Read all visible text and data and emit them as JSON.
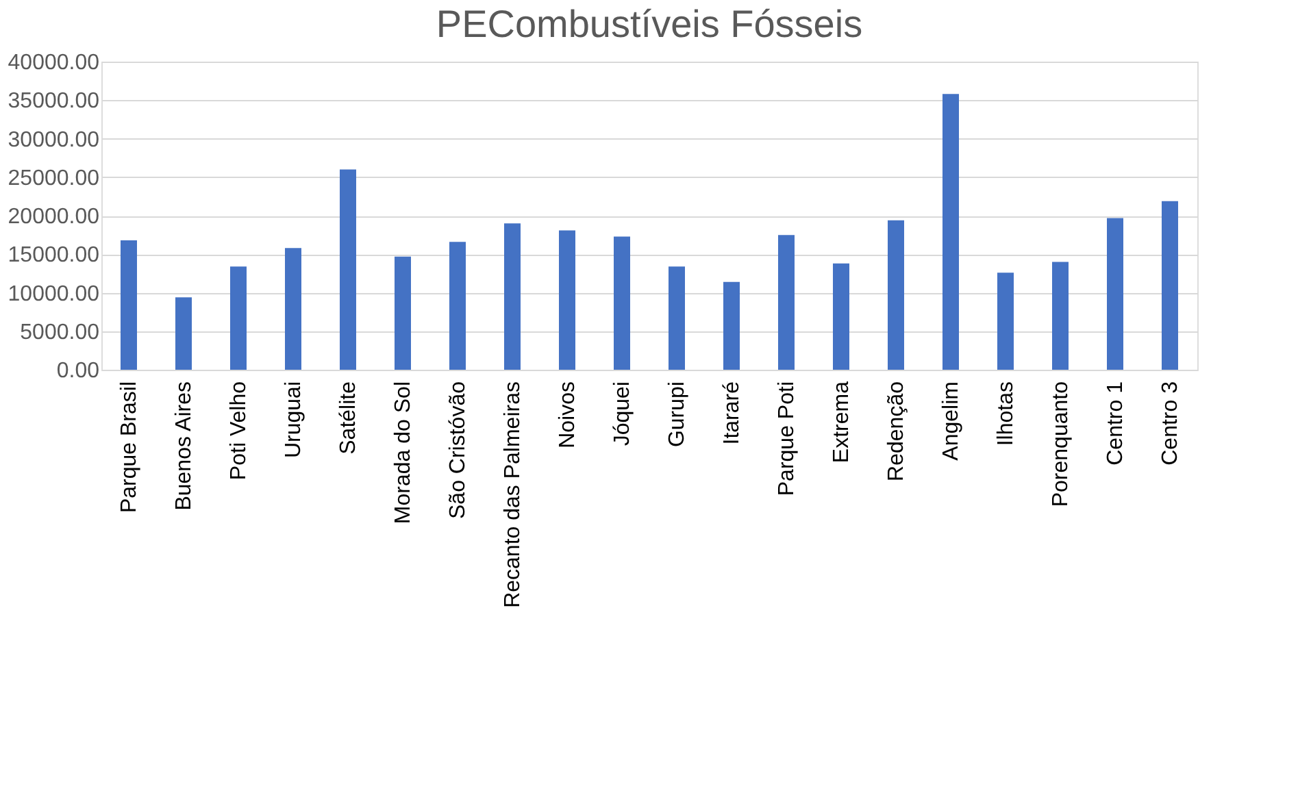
{
  "chart_data": {
    "type": "bar",
    "title": "PECombustíveis Fósseis",
    "categories": [
      "Parque Brasil",
      "Buenos Aires",
      "Poti Velho",
      "Uruguai",
      "Satélite",
      "Morada do Sol",
      "São Cristóvão",
      "Recanto das Palmeiras",
      "Noivos",
      "Jóquei",
      "Gurupi",
      "Itararé",
      "Parque Poti",
      "Extrema",
      "Redenção",
      "Angelim",
      "Ilhotas",
      "Porenquanto",
      "Centro 1",
      "Centro 3"
    ],
    "values": [
      16800,
      9400,
      13400,
      15800,
      26000,
      14700,
      16600,
      19000,
      18100,
      17300,
      13400,
      11400,
      17500,
      13800,
      19400,
      35800,
      12600,
      14000,
      19700,
      21900
    ],
    "color": "#4472c4",
    "ylim": [
      0,
      40000
    ],
    "yticks": [
      {
        "value": 0,
        "label": "0.00"
      },
      {
        "value": 5000,
        "label": "5000.00"
      },
      {
        "value": 10000,
        "label": "10000.00"
      },
      {
        "value": 15000,
        "label": "15000.00"
      },
      {
        "value": 20000,
        "label": "20000.00"
      },
      {
        "value": 25000,
        "label": "25000.00"
      },
      {
        "value": 30000,
        "label": "30000.00"
      },
      {
        "value": 35000,
        "label": "35000.00"
      },
      {
        "value": 40000,
        "label": "40000.00"
      }
    ],
    "grid": "y"
  }
}
